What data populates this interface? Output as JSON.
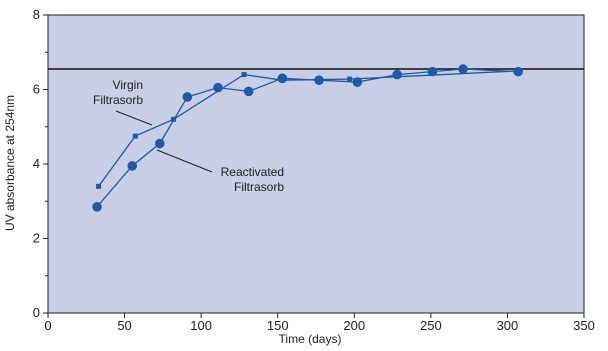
{
  "chart_data": {
    "type": "line",
    "title": "",
    "xlabel": "Time (days)",
    "ylabel": "UV absorbance at 254nm",
    "xlim": [
      0,
      350
    ],
    "ylim": [
      0,
      8
    ],
    "x_ticks": [
      "0",
      "50",
      "100",
      "150",
      "200",
      "250",
      "300",
      "350"
    ],
    "y_ticks": [
      "0",
      "2",
      "4",
      "6",
      "8"
    ],
    "grid": false,
    "reference_line_y": 6.55,
    "series": [
      {
        "name": "Virgin Filtrasorb",
        "marker": "square",
        "x": [
          33,
          57,
          82,
          128,
          153,
          197,
          307
        ],
        "y": [
          3.4,
          4.75,
          5.2,
          6.4,
          6.25,
          6.28,
          6.5
        ]
      },
      {
        "name": "Reactivated Filtrasorb",
        "marker": "circle",
        "x": [
          32,
          55,
          73,
          91,
          111,
          131,
          153,
          177,
          202,
          228,
          251,
          271,
          307
        ],
        "y": [
          2.85,
          3.95,
          4.55,
          5.8,
          6.05,
          5.95,
          6.3,
          6.25,
          6.2,
          6.4,
          6.48,
          6.55,
          6.48
        ]
      }
    ],
    "annotations": [
      {
        "lines": [
          "Virgin",
          "Filtrasorb"
        ]
      },
      {
        "lines": [
          "Reactivated",
          "Filtrasorb"
        ]
      }
    ],
    "colors": {
      "plot_background": "#c8cee6",
      "series": "#1f5aa6",
      "axis": "#222222",
      "reference_line": "#111111"
    }
  }
}
